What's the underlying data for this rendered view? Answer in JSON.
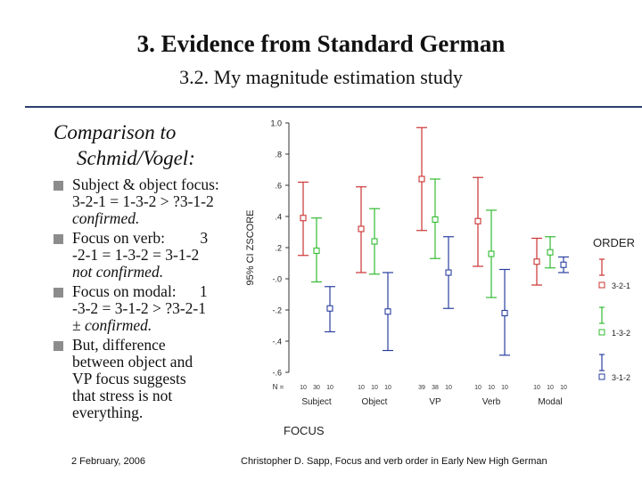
{
  "slide": {
    "title": "3. Evidence from Standard German",
    "subtitle": "3.2. My magnitude estimation study",
    "heading_line1": "Comparison to",
    "heading_line2": "Schmid/Vogel:",
    "bullets": [
      {
        "lines": [
          "Subject & object focus:",
          "3-2-1 = 1-3-2 > ?3-1-2"
        ],
        "emphasis": "confirmed."
      },
      {
        "lines": [
          "Focus on verb:         3",
          "-2-1 = 1-3-2 = 3-1-2"
        ],
        "emphasis": "not confirmed."
      },
      {
        "lines": [
          "Focus on modal:      1",
          "-3-2 = 3-1-2 > ?3-2-1"
        ],
        "emphasis": "± confirmed."
      },
      {
        "lines": [
          "But, difference",
          "between object and",
          "VP focus suggests",
          "that stress is not",
          "everything."
        ],
        "emphasis": ""
      }
    ],
    "footer_date": "2 February, 2006",
    "footer_citation": "Christopher D. Sapp, Focus and verb order in Early New High German"
  },
  "chart_data": {
    "type": "errorbar",
    "xlabel": "FOCUS",
    "ylabel": "95% CI ZSCORE",
    "ylim": [
      -0.6,
      1.0
    ],
    "yticks": [
      "1.0",
      ".8",
      ".6",
      ".4",
      ".2",
      "-.0",
      "-.2",
      "-.4",
      "-.6"
    ],
    "categories": [
      "Subject",
      "Object",
      "VP",
      "Verb",
      "Modal"
    ],
    "n_label": "N =",
    "n_values": [
      [
        "10",
        "30",
        "10"
      ],
      [
        "10",
        "10",
        "10"
      ],
      [
        "39",
        "38",
        "10"
      ],
      [
        "10",
        "10",
        "10"
      ],
      [
        "10",
        "10",
        "10"
      ]
    ],
    "legend_title": "ORDER",
    "series": [
      {
        "name": "3-2-1",
        "color": "#cc3333",
        "mean": [
          0.39,
          0.32,
          0.64,
          0.37,
          0.11
        ],
        "lower": [
          0.15,
          0.04,
          0.31,
          0.08,
          -0.04
        ],
        "upper": [
          0.62,
          0.59,
          0.97,
          0.65,
          0.26
        ]
      },
      {
        "name": "1-3-2",
        "color": "#33bb33",
        "mean": [
          0.18,
          0.24,
          0.38,
          0.16,
          0.17
        ],
        "lower": [
          -0.02,
          0.03,
          0.13,
          -0.12,
          0.07
        ],
        "upper": [
          0.39,
          0.45,
          0.64,
          0.44,
          0.27
        ]
      },
      {
        "name": "3-1-2",
        "color": "#2a3f9e",
        "mean": [
          -0.19,
          -0.21,
          0.04,
          -0.22,
          0.09
        ],
        "lower": [
          -0.34,
          -0.46,
          -0.19,
          -0.49,
          0.04
        ],
        "upper": [
          -0.05,
          0.04,
          0.27,
          0.06,
          0.14
        ]
      }
    ],
    "legend_placement": "right",
    "grid": false
  }
}
